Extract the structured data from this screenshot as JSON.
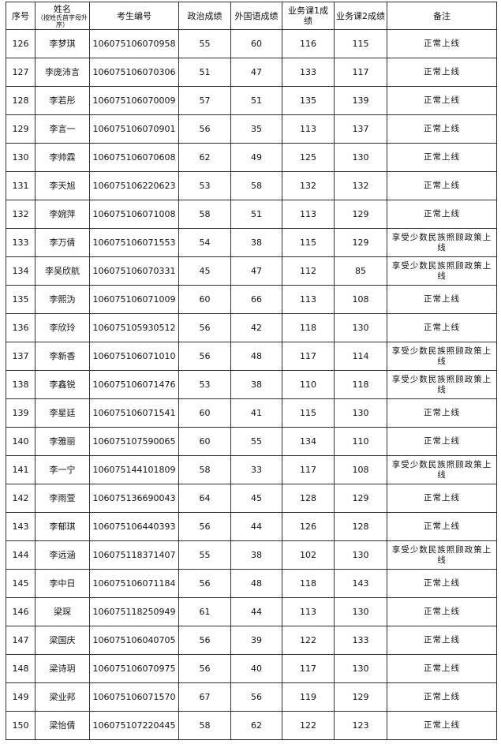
{
  "headers": {
    "seq": "序号",
    "name": "姓名",
    "name_note": "（按姓氏首字母升序）",
    "id": "考生编号",
    "politics": "政治成绩",
    "foreign": "外国语成绩",
    "course1": "业务课1成绩",
    "course2": "业务课2成绩",
    "remark": "备注"
  },
  "rows": [
    [
      "126",
      "李梦琪",
      "106075106070958",
      "55",
      "60",
      "116",
      "115",
      "正常上线"
    ],
    [
      "127",
      "李庞沛言",
      "106075106070306",
      "51",
      "47",
      "133",
      "117",
      "正常上线"
    ],
    [
      "128",
      "李若彤",
      "106075106070009",
      "57",
      "51",
      "135",
      "139",
      "正常上线"
    ],
    [
      "129",
      "李言一",
      "106075106070901",
      "56",
      "35",
      "113",
      "137",
      "正常上线"
    ],
    [
      "130",
      "李帅霖",
      "106075106070608",
      "62",
      "49",
      "125",
      "130",
      "正常上线"
    ],
    [
      "131",
      "李天旭",
      "106075106220623",
      "53",
      "58",
      "132",
      "132",
      "正常上线"
    ],
    [
      "132",
      "李婉萍",
      "106075106071008",
      "58",
      "51",
      "113",
      "129",
      "正常上线"
    ],
    [
      "133",
      "李万倩",
      "106075106071553",
      "54",
      "38",
      "115",
      "129",
      "享受少数民族照顾政策上线"
    ],
    [
      "134",
      "李吴欣航",
      "106075106070331",
      "45",
      "47",
      "112",
      "85",
      "享受少数民族照顾政策上线"
    ],
    [
      "135",
      "李熙沩",
      "106075106071009",
      "60",
      "66",
      "113",
      "108",
      "正常上线"
    ],
    [
      "136",
      "李欣玲",
      "106075105930512",
      "56",
      "42",
      "118",
      "130",
      "正常上线"
    ],
    [
      "137",
      "李新香",
      "106075106071010",
      "56",
      "48",
      "117",
      "114",
      "享受少数民族照顾政策上线"
    ],
    [
      "138",
      "李鑫锐",
      "106075106071476",
      "53",
      "38",
      "110",
      "118",
      "享受少数民族照顾政策上线"
    ],
    [
      "139",
      "李星廷",
      "106075106071541",
      "60",
      "41",
      "115",
      "130",
      "正常上线"
    ],
    [
      "140",
      "李雅丽",
      "106075107590065",
      "60",
      "55",
      "134",
      "110",
      "正常上线"
    ],
    [
      "141",
      "李一宁",
      "106075144101809",
      "58",
      "33",
      "117",
      "108",
      "享受少数民族照顾政策上线"
    ],
    [
      "142",
      "李雨萱",
      "106075136690043",
      "64",
      "45",
      "128",
      "129",
      "正常上线"
    ],
    [
      "143",
      "李郁琪",
      "106075106440393",
      "56",
      "44",
      "126",
      "128",
      "正常上线"
    ],
    [
      "144",
      "李远涵",
      "106075118371407",
      "55",
      "38",
      "102",
      "130",
      "享受少数民族照顾政策上线"
    ],
    [
      "145",
      "李中日",
      "106075106071184",
      "56",
      "48",
      "118",
      "143",
      "正常上线"
    ],
    [
      "146",
      "梁琛",
      "106075118250949",
      "61",
      "44",
      "113",
      "130",
      "正常上线"
    ],
    [
      "147",
      "梁国庆",
      "106075106040705",
      "56",
      "39",
      "122",
      "133",
      "正常上线"
    ],
    [
      "148",
      "梁诗玥",
      "106075106070975",
      "56",
      "40",
      "117",
      "130",
      "正常上线"
    ],
    [
      "149",
      "梁业邦",
      "106075106071570",
      "67",
      "56",
      "119",
      "129",
      "正常上线"
    ],
    [
      "150",
      "梁怡倩",
      "106075107220445",
      "58",
      "62",
      "122",
      "123",
      "正常上线"
    ]
  ]
}
